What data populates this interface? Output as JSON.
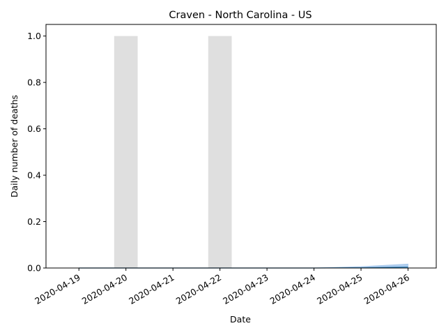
{
  "chart_data": {
    "type": "bar",
    "title": "Craven - North Carolina - US",
    "xlabel": "Date",
    "ylabel": "Daily number of deaths",
    "x": [
      "2020-04-19",
      "2020-04-20",
      "2020-04-21",
      "2020-04-22",
      "2020-04-23",
      "2020-04-24",
      "2020-04-25",
      "2020-04-26"
    ],
    "values": [
      0,
      1,
      0,
      1,
      0,
      0,
      0,
      0
    ],
    "trend_line": [
      0,
      0,
      0,
      0,
      0,
      0,
      0.001,
      0.004
    ],
    "trend_band_upper": [
      0,
      0,
      0,
      0,
      0,
      0,
      0.006,
      0.017
    ],
    "trend_band_lower": [
      0,
      0,
      0,
      0,
      0,
      0,
      0,
      0
    ],
    "y_ticks": [
      "0.0",
      "0.2",
      "0.4",
      "0.6",
      "0.8",
      "1.0"
    ],
    "y_tick_values": [
      0,
      0.2,
      0.4,
      0.6,
      0.8,
      1.0
    ],
    "ylim": [
      0,
      1.05
    ],
    "xlim": [
      -0.7,
      7.6
    ],
    "grid": false,
    "colors": {
      "bar": "#dfdfdf",
      "trend_line": "#1f77b4",
      "trend_band": "#a6c8ec",
      "axis": "#000000"
    }
  }
}
